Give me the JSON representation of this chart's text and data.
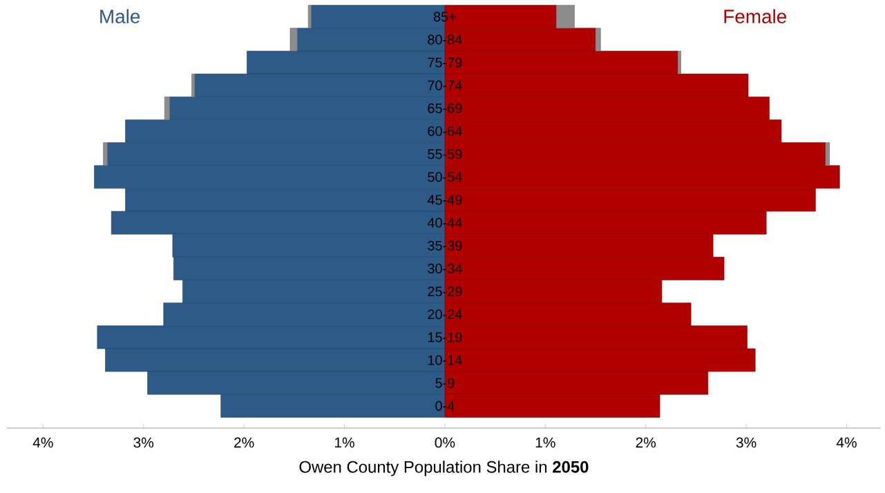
{
  "chart_data": {
    "type": "bar",
    "orientation": "horizontal",
    "stacked": true,
    "xlabel": "Owen County Population Share in **2050**",
    "categories": [
      "85+",
      "80-84",
      "75-79",
      "70-74",
      "65-69",
      "60-64",
      "55-59",
      "50-54",
      "45-49",
      "40-44",
      "35-39",
      "30-34",
      "25-29",
      "20-24",
      "15-19",
      "10-14",
      "5-9",
      "0-4"
    ],
    "xlim": [
      -4.36,
      4.34
    ],
    "xticks": [
      {
        "value": -4,
        "label": "4%"
      },
      {
        "value": -3,
        "label": "3%"
      },
      {
        "value": -2,
        "label": "2%"
      },
      {
        "value": -1,
        "label": "1%"
      },
      {
        "value": 0,
        "label": "0%"
      },
      {
        "value": 1,
        "label": "1%"
      },
      {
        "value": 2,
        "label": "2%"
      },
      {
        "value": 3,
        "label": "3%"
      },
      {
        "value": 4,
        "label": "4%"
      }
    ],
    "series": [
      {
        "name": "Male",
        "color": "#2d5a87",
        "values": [
          -1.33,
          -1.47,
          -1.97,
          -2.49,
          -2.74,
          -3.18,
          -3.36,
          -3.49,
          -3.18,
          -3.32,
          -2.71,
          -2.7,
          -2.61,
          -2.8,
          -3.46,
          -3.38,
          -2.96,
          -2.23
        ]
      },
      {
        "color": "#8c8c8c",
        "values": [
          -0.03,
          -0.07,
          null,
          -0.03,
          -0.05,
          null,
          -0.04,
          null,
          null,
          null,
          null,
          null,
          null,
          null,
          null,
          null,
          null,
          null
        ]
      },
      {
        "name": "Female",
        "color": "#b00000",
        "values": [
          1.11,
          1.5,
          2.32,
          3.02,
          3.23,
          3.35,
          3.79,
          3.93,
          3.69,
          3.2,
          2.67,
          2.78,
          2.16,
          2.45,
          3.01,
          3.09,
          2.62,
          2.14
        ]
      },
      {
        "color": "#8c8c8c",
        "values": [
          0.18,
          0.05,
          0.03,
          null,
          null,
          null,
          0.04,
          null,
          null,
          null,
          null,
          null,
          null,
          null,
          null,
          null,
          null,
          null
        ]
      }
    ]
  }
}
